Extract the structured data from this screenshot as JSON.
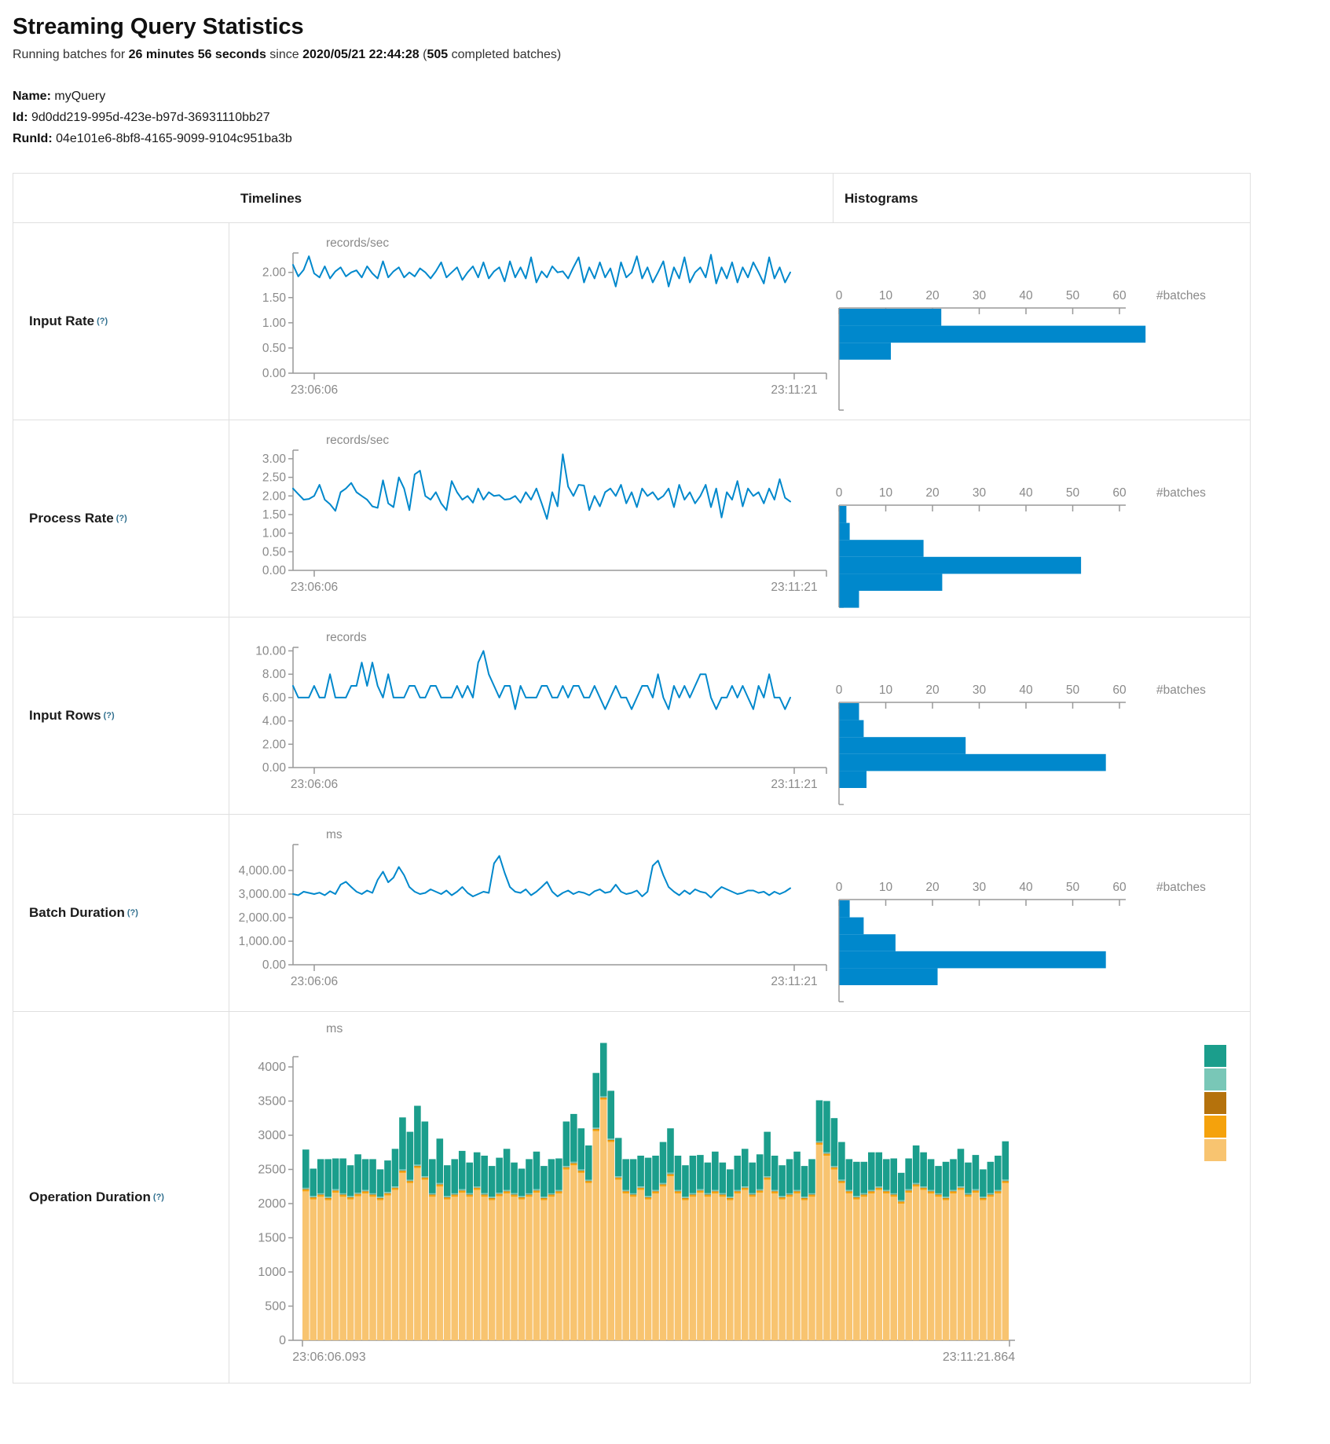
{
  "header": {
    "title": "Streaming Query Statistics",
    "subtitle": {
      "prefix": "Running batches for ",
      "duration": "26 minutes 56 seconds",
      "since_word": " since ",
      "timestamp": "2020/05/21 22:44:28",
      "open_paren": " (",
      "batches_count": "505",
      "batches_suffix": " completed batches)"
    },
    "meta": [
      {
        "label": "Name:",
        "value": "myQuery"
      },
      {
        "label": "Id:",
        "value": "9d0dd219-995d-423e-b97d-36931110bb27"
      },
      {
        "label": "RunId:",
        "value": "04e101e6-8bf8-4165-9099-9104c951ba3b"
      }
    ]
  },
  "table": {
    "columns": [
      "Timelines",
      "Histograms"
    ],
    "rows": [
      {
        "label": "Input Rate",
        "help": "(?)"
      },
      {
        "label": "Process Rate",
        "help": "(?)"
      },
      {
        "label": "Input Rows",
        "help": "(?)"
      },
      {
        "label": "Batch Duration",
        "help": "(?)"
      },
      {
        "label": "Operation Duration",
        "help": "(?)"
      }
    ]
  },
  "colors": {
    "line_blue": "#0088cc",
    "hist_blue": "#0088cc",
    "axis_gray": "#999999",
    "text_gray": "#8a8a8a",
    "teal": "#1b9e8c",
    "light_teal": "#79c7b7",
    "brown": "#b5720c",
    "orange": "#f5a20c",
    "light_orange": "#f8c470"
  },
  "chart_data": {
    "hist_axis": {
      "tick_labels": [
        "0",
        "10",
        "20",
        "30",
        "40",
        "50",
        "60"
      ],
      "label": "#batches"
    },
    "timelines": [
      {
        "type": "line",
        "title": "Input Rate",
        "unit": "records/sec",
        "ytick_labels": [
          "0.00",
          "0.50",
          "1.00",
          "1.50",
          "2.00"
        ],
        "ymax": 2.385,
        "xlabels": [
          "23:06:06",
          "23:11:21"
        ],
        "values": [
          2.15,
          1.92,
          2.05,
          2.32,
          1.98,
          1.9,
          2.12,
          1.88,
          2.02,
          2.1,
          1.92,
          2.0,
          2.04,
          1.9,
          2.12,
          1.98,
          1.88,
          2.22,
          1.9,
          2.02,
          2.1,
          1.9,
          2.0,
          1.92,
          2.08,
          2.0,
          1.88,
          2.02,
          2.2,
          1.9,
          2.0,
          2.1,
          1.85,
          2.0,
          2.12,
          1.9,
          2.2,
          1.88,
          2.02,
          2.1,
          1.82,
          2.22,
          1.9,
          2.1,
          1.88,
          2.3,
          1.8,
          2.02,
          1.9,
          2.12,
          2.0,
          2.02,
          1.88,
          2.1,
          2.3,
          1.8,
          2.1,
          1.88,
          2.2,
          1.9,
          2.08,
          1.72,
          2.2,
          1.9,
          2.0,
          2.32,
          1.88,
          2.1,
          1.8,
          2.0,
          2.22,
          1.72,
          2.1,
          1.88,
          2.3,
          1.8,
          2.0,
          2.1,
          1.9,
          2.35,
          1.78,
          2.1,
          1.88,
          2.2,
          1.8,
          2.1,
          1.9,
          2.2,
          2.0,
          1.78,
          2.3,
          1.88,
          2.1,
          1.8,
          2.0
        ]
      },
      {
        "type": "line",
        "title": "Process Rate",
        "unit": "records/sec",
        "ytick_labels": [
          "0.00",
          "0.50",
          "1.00",
          "1.50",
          "2.00",
          "2.50",
          "3.00"
        ],
        "ymax": 3.23,
        "xlabels": [
          "23:06:06",
          "23:11:21"
        ],
        "values": [
          2.2,
          2.05,
          1.9,
          1.92,
          2.0,
          2.3,
          1.9,
          1.78,
          1.6,
          2.1,
          2.2,
          2.35,
          2.1,
          2.0,
          1.9,
          1.72,
          1.68,
          2.42,
          1.8,
          1.7,
          2.5,
          2.2,
          1.62,
          2.58,
          2.68,
          2.0,
          1.9,
          2.1,
          1.8,
          1.62,
          2.4,
          2.1,
          1.9,
          2.0,
          1.82,
          2.2,
          1.9,
          2.1,
          2.0,
          2.02,
          1.9,
          1.92,
          2.0,
          1.82,
          2.1,
          1.9,
          2.2,
          1.8,
          1.38,
          2.1,
          1.72,
          3.12,
          2.25,
          2.0,
          2.3,
          2.28,
          1.62,
          2.0,
          1.72,
          2.1,
          2.2,
          2.0,
          2.3,
          1.8,
          2.1,
          1.7,
          2.2,
          2.0,
          2.1,
          1.9,
          2.0,
          2.2,
          1.7,
          2.3,
          1.9,
          2.1,
          1.8,
          2.0,
          2.3,
          1.7,
          2.2,
          1.42,
          2.1,
          1.9,
          2.4,
          1.72,
          2.2,
          2.0,
          2.1,
          1.8,
          2.2,
          1.9,
          2.45,
          1.95,
          1.85
        ]
      },
      {
        "type": "line",
        "title": "Input Rows",
        "unit": "records",
        "ytick_labels": [
          "0.00",
          "2.00",
          "4.00",
          "6.00",
          "8.00",
          "10.00"
        ],
        "ymax": 10.3,
        "xlabels": [
          "23:06:06",
          "23:11:21"
        ],
        "values": [
          7,
          6,
          6,
          6,
          7,
          6,
          6,
          8,
          6,
          6,
          6,
          7,
          7,
          9,
          7,
          9,
          7,
          6,
          8,
          6,
          6,
          6,
          7,
          7,
          6,
          6,
          7,
          7,
          6,
          6,
          6,
          7,
          6,
          7,
          6,
          9,
          10,
          8,
          7,
          6,
          7,
          7,
          5,
          7,
          6,
          6,
          6,
          7,
          7,
          6,
          6,
          7,
          6,
          7,
          7,
          6,
          6,
          7,
          6,
          5,
          6,
          7,
          6,
          6,
          5,
          6,
          7,
          7,
          6,
          8,
          6,
          5,
          7,
          6,
          7,
          6,
          7,
          8,
          8,
          6,
          5,
          6,
          6,
          7,
          6,
          7,
          6,
          5,
          7,
          6,
          8,
          6,
          6,
          5,
          6
        ]
      },
      {
        "type": "line",
        "title": "Batch Duration",
        "unit": "ms",
        "ytick_labels": [
          "0.00",
          "1,000.00",
          "2,000.00",
          "3,000.00",
          "4,000.00"
        ],
        "ymax": 5100,
        "xlabels": [
          "23:06:06",
          "23:11:21"
        ],
        "values": [
          3000,
          2950,
          3100,
          3050,
          3000,
          3060,
          2950,
          3120,
          3000,
          3400,
          3520,
          3300,
          3100,
          3000,
          3150,
          3050,
          3600,
          3950,
          3500,
          3700,
          4150,
          3800,
          3300,
          3100,
          3000,
          3050,
          3200,
          3100,
          3000,
          3150,
          2950,
          3100,
          3300,
          3050,
          2900,
          3000,
          3100,
          3050,
          4300,
          4620,
          3900,
          3300,
          3100,
          3050,
          3200,
          2950,
          3100,
          3300,
          3520,
          3100,
          2900,
          3050,
          3150,
          3000,
          3100,
          3050,
          2950,
          3120,
          3200,
          3050,
          3100,
          3400,
          3100,
          3000,
          3050,
          3150,
          2900,
          3100,
          4200,
          4420,
          3800,
          3300,
          3100,
          2950,
          3150,
          3000,
          3200,
          3100,
          3050,
          2850,
          3100,
          3300,
          3200,
          3100,
          3000,
          3050,
          3150,
          3150,
          3050,
          3100,
          2950,
          3100,
          3000,
          3100,
          3250
        ]
      }
    ],
    "histograms": [
      {
        "type": "bar",
        "title": "Input Rate histogram",
        "xlabel": "#batches",
        "bins": [
          21.8,
          65.5,
          11
        ]
      },
      {
        "type": "bar",
        "title": "Process Rate histogram",
        "xlabel": "#batches",
        "bins": [
          1.5,
          2.2,
          18,
          51.7,
          22,
          4.2
        ]
      },
      {
        "type": "bar",
        "title": "Input Rows histogram",
        "xlabel": "#batches",
        "bins": [
          4.2,
          5.2,
          27,
          57,
          5.8
        ]
      },
      {
        "type": "bar",
        "title": "Batch Duration histogram",
        "xlabel": "#batches",
        "bins": [
          2.2,
          5.2,
          12,
          57,
          21
        ]
      }
    ],
    "operation_duration": {
      "type": "bar",
      "stacked": true,
      "title": "Operation Duration",
      "unit": "ms",
      "ytick_labels": [
        "0",
        "500",
        "1000",
        "1500",
        "2000",
        "2500",
        "3000",
        "3500",
        "4000"
      ],
      "xlabels": [
        "23:06:06.093",
        "23:11:21.864"
      ],
      "legend_colors": [
        "#1b9e8c",
        "#79c7b7",
        "#b5720c",
        "#f5a20c",
        "#f8c470"
      ],
      "series": [
        {
          "name": "light-orange",
          "color": "#f8c470",
          "values": [
            2180,
            2060,
            2100,
            2050,
            2160,
            2100,
            2060,
            2110,
            2150,
            2100,
            2050,
            2120,
            2200,
            2450,
            2300,
            2520,
            2350,
            2100,
            2250,
            2060,
            2100,
            2160,
            2100,
            2200,
            2100,
            2050,
            2110,
            2150,
            2100,
            2060,
            2100,
            2160,
            2050,
            2100,
            2150,
            2500,
            2560,
            2450,
            2300,
            3060,
            3520,
            2900,
            2350,
            2150,
            2100,
            2200,
            2060,
            2150,
            2250,
            2400,
            2150,
            2050,
            2100,
            2160,
            2100,
            2150,
            2100,
            2050,
            2150,
            2200,
            2100,
            2160,
            2350,
            2150,
            2060,
            2100,
            2150,
            2050,
            2100,
            2860,
            2700,
            2500,
            2300,
            2150,
            2060,
            2100,
            2150,
            2200,
            2150,
            2100,
            2000,
            2160,
            2250,
            2200,
            2150,
            2100,
            2050,
            2150,
            2200,
            2100,
            2160,
            2050,
            2100,
            2150,
            2300
          ]
        },
        {
          "name": "orange",
          "color": "#f5a20c",
          "value": 25
        },
        {
          "name": "brown",
          "color": "#b5720c",
          "value": 8
        },
        {
          "name": "light-teal",
          "color": "#79c7b7",
          "value": 18
        },
        {
          "name": "teal",
          "color": "#1b9e8c",
          "values": [
            560,
            400,
            500,
            550,
            450,
            510,
            450,
            560,
            450,
            500,
            400,
            460,
            550,
            760,
            700,
            860,
            800,
            500,
            650,
            450,
            500,
            560,
            450,
            500,
            550,
            450,
            510,
            600,
            450,
            400,
            500,
            550,
            450,
            500,
            460,
            650,
            700,
            600,
            500,
            800,
            780,
            700,
            560,
            450,
            500,
            450,
            560,
            500,
            600,
            650,
            500,
            460,
            550,
            500,
            450,
            560,
            450,
            400,
            500,
            550,
            450,
            510,
            650,
            500,
            450,
            500,
            560,
            450,
            500,
            600,
            750,
            700,
            550,
            450,
            500,
            460,
            550,
            500,
            450,
            510,
            400,
            450,
            550,
            500,
            450,
            400,
            510,
            450,
            550,
            450,
            500,
            400,
            460,
            500,
            560
          ]
        }
      ]
    }
  }
}
